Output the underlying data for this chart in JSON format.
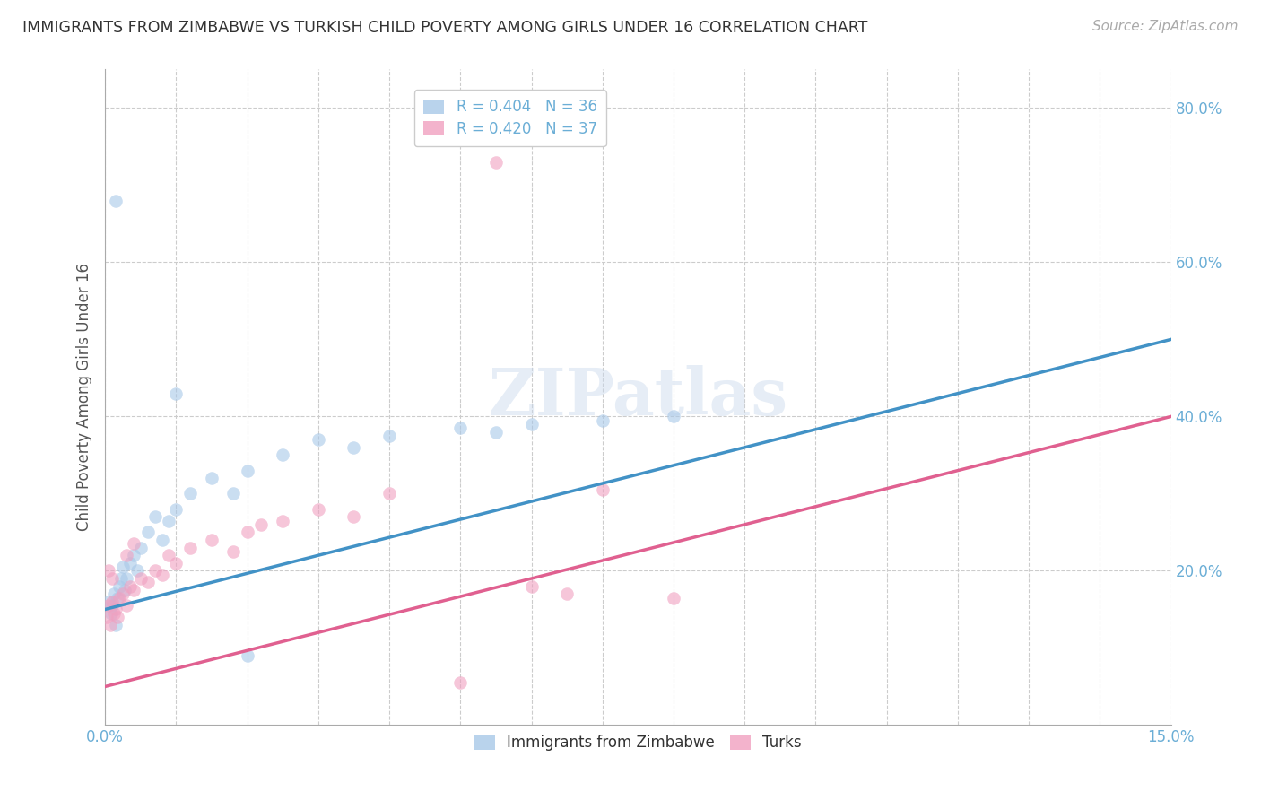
{
  "title": "IMMIGRANTS FROM ZIMBABWE VS TURKISH CHILD POVERTY AMONG GIRLS UNDER 16 CORRELATION CHART",
  "source": "Source: ZipAtlas.com",
  "ylabel": "Child Poverty Among Girls Under 16",
  "xmin": 0.0,
  "xmax": 15.0,
  "ymin": 0.0,
  "ymax": 85.0,
  "ytick_vals": [
    20,
    40,
    60,
    80
  ],
  "ytick_labels": [
    "20.0%",
    "40.0%",
    "60.0%",
    "80.0%"
  ],
  "blue_scatter": [
    [
      0.05,
      16.0
    ],
    [
      0.08,
      14.5
    ],
    [
      0.1,
      15.5
    ],
    [
      0.12,
      17.0
    ],
    [
      0.15,
      13.0
    ],
    [
      0.18,
      16.5
    ],
    [
      0.2,
      18.0
    ],
    [
      0.22,
      19.0
    ],
    [
      0.25,
      20.5
    ],
    [
      0.28,
      17.5
    ],
    [
      0.3,
      19.0
    ],
    [
      0.35,
      21.0
    ],
    [
      0.4,
      22.0
    ],
    [
      0.45,
      20.0
    ],
    [
      0.5,
      23.0
    ],
    [
      0.6,
      25.0
    ],
    [
      0.7,
      27.0
    ],
    [
      0.8,
      24.0
    ],
    [
      0.9,
      26.5
    ],
    [
      1.0,
      28.0
    ],
    [
      1.2,
      30.0
    ],
    [
      1.5,
      32.0
    ],
    [
      1.8,
      30.0
    ],
    [
      2.0,
      33.0
    ],
    [
      2.5,
      35.0
    ],
    [
      3.0,
      37.0
    ],
    [
      3.5,
      36.0
    ],
    [
      4.0,
      37.5
    ],
    [
      5.0,
      38.5
    ],
    [
      6.0,
      39.0
    ],
    [
      7.0,
      39.5
    ],
    [
      8.0,
      40.0
    ],
    [
      0.15,
      68.0
    ],
    [
      1.0,
      43.0
    ],
    [
      2.0,
      9.0
    ],
    [
      5.5,
      38.0
    ]
  ],
  "pink_scatter": [
    [
      0.02,
      14.0
    ],
    [
      0.05,
      15.5
    ],
    [
      0.07,
      13.0
    ],
    [
      0.1,
      16.0
    ],
    [
      0.12,
      14.5
    ],
    [
      0.15,
      15.0
    ],
    [
      0.18,
      14.0
    ],
    [
      0.2,
      16.5
    ],
    [
      0.25,
      17.0
    ],
    [
      0.3,
      15.5
    ],
    [
      0.35,
      18.0
    ],
    [
      0.4,
      17.5
    ],
    [
      0.5,
      19.0
    ],
    [
      0.6,
      18.5
    ],
    [
      0.7,
      20.0
    ],
    [
      0.8,
      19.5
    ],
    [
      0.9,
      22.0
    ],
    [
      1.0,
      21.0
    ],
    [
      1.2,
      23.0
    ],
    [
      1.5,
      24.0
    ],
    [
      1.8,
      22.5
    ],
    [
      2.0,
      25.0
    ],
    [
      2.2,
      26.0
    ],
    [
      2.5,
      26.5
    ],
    [
      3.0,
      28.0
    ],
    [
      3.5,
      27.0
    ],
    [
      4.0,
      30.0
    ],
    [
      5.0,
      5.5
    ],
    [
      5.5,
      73.0
    ],
    [
      6.0,
      18.0
    ],
    [
      6.5,
      17.0
    ],
    [
      7.0,
      30.5
    ],
    [
      8.0,
      16.5
    ],
    [
      0.05,
      20.0
    ],
    [
      0.1,
      19.0
    ],
    [
      0.3,
      22.0
    ],
    [
      0.4,
      23.5
    ]
  ],
  "blue_trend": [
    0.0,
    15.0,
    15.0,
    50.0
  ],
  "pink_trend": [
    0.0,
    5.0,
    15.0,
    40.0
  ],
  "blue_line_color": "#4292c6",
  "pink_line_color": "#e06090",
  "blue_dot_color": "#a8c8e8",
  "pink_dot_color": "#f0a0c0",
  "dot_alpha": 0.6,
  "dot_size": 110,
  "background_color": "#ffffff",
  "grid_color": "#cccccc",
  "title_color": "#333333",
  "axis_label_color": "#555555",
  "tick_color": "#6baed6",
  "watermark": "ZIPatlas",
  "blue_R": 0.404,
  "blue_N": 36,
  "pink_R": 0.42,
  "pink_N": 37,
  "series1_label": "Immigrants from Zimbabwe",
  "series2_label": "Turks"
}
